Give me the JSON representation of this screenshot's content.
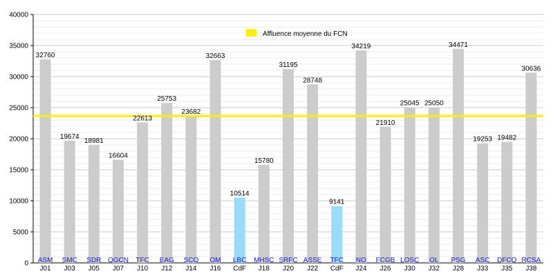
{
  "chart_data": {
    "type": "bar",
    "title": "",
    "xlabel": "",
    "ylabel": "",
    "ylim": [
      0,
      40000
    ],
    "yticks": [
      0,
      5000,
      10000,
      15000,
      20000,
      25000,
      30000,
      35000,
      40000
    ],
    "grid": true,
    "legend_position": "top-center",
    "bar_colors": {
      "default": "#cccccc",
      "highlight": "#99dcfa"
    },
    "team_label_color": "#1a1ad6",
    "categories": [
      {
        "team": "ASM",
        "round": "J01",
        "value": 32760,
        "highlight": false
      },
      {
        "team": "SMC",
        "round": "J03",
        "value": 19674,
        "highlight": false
      },
      {
        "team": "SDR",
        "round": "J05",
        "value": 18981,
        "highlight": false
      },
      {
        "team": "OGCN",
        "round": "J07",
        "value": 16604,
        "highlight": false
      },
      {
        "team": "TFC",
        "round": "J10",
        "value": 22613,
        "highlight": false
      },
      {
        "team": "EAG",
        "round": "J12",
        "value": 25753,
        "highlight": false
      },
      {
        "team": "SCO",
        "round": "J14",
        "value": 23682,
        "highlight": false
      },
      {
        "team": "OM",
        "round": "J16",
        "value": 32663,
        "highlight": false
      },
      {
        "team": "LBC",
        "round": "CdF",
        "value": 10514,
        "highlight": true
      },
      {
        "team": "MHSC",
        "round": "J18",
        "value": 15780,
        "highlight": false
      },
      {
        "team": "SRFC",
        "round": "J20",
        "value": 31195,
        "highlight": false
      },
      {
        "team": "ASSE",
        "round": "J22",
        "value": 28748,
        "highlight": false
      },
      {
        "team": "TFC",
        "round": "CdF",
        "value": 9141,
        "highlight": true
      },
      {
        "team": "NO",
        "round": "J24",
        "value": 34219,
        "highlight": false
      },
      {
        "team": "FCGB",
        "round": "J26",
        "value": 21910,
        "highlight": false
      },
      {
        "team": "LOSC",
        "round": "J30",
        "value": 25045,
        "highlight": false
      },
      {
        "team": "OL",
        "round": "J32",
        "value": 25050,
        "highlight": false
      },
      {
        "team": "PSG",
        "round": "J28",
        "value": 34471,
        "highlight": false
      },
      {
        "team": "ASC",
        "round": "J33",
        "value": 19253,
        "highlight": false
      },
      {
        "team": "DFCO",
        "round": "J35",
        "value": 19482,
        "highlight": false
      },
      {
        "team": "RCSA",
        "round": "J38",
        "value": 30636,
        "highlight": false
      }
    ],
    "average": {
      "name": "Affluence moyenne du FCN",
      "value": 23650,
      "color": "#ffee00"
    }
  }
}
